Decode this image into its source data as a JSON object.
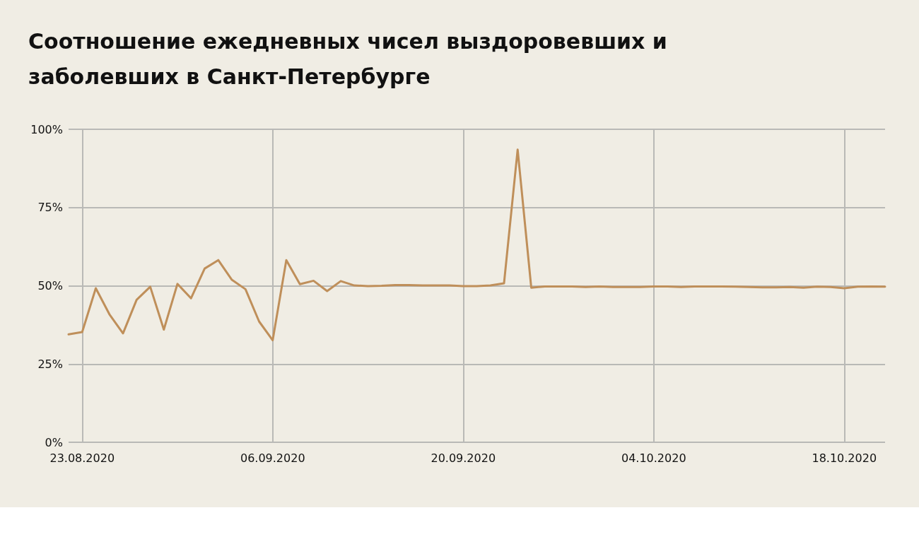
{
  "chart_data": {
    "type": "line",
    "title": "Соотношение ежедневных чисел выздоровевших и заболевших в Санкт-Петербурге",
    "x": [
      "2020-08-22",
      "2020-08-23",
      "2020-08-24",
      "2020-08-25",
      "2020-08-26",
      "2020-08-27",
      "2020-08-28",
      "2020-08-29",
      "2020-08-30",
      "2020-08-31",
      "2020-09-01",
      "2020-09-02",
      "2020-09-03",
      "2020-09-04",
      "2020-09-05",
      "2020-09-06",
      "2020-09-07",
      "2020-09-08",
      "2020-09-09",
      "2020-09-10",
      "2020-09-11",
      "2020-09-12",
      "2020-09-13",
      "2020-09-14",
      "2020-09-15",
      "2020-09-16",
      "2020-09-17",
      "2020-09-18",
      "2020-09-19",
      "2020-09-20",
      "2020-09-21",
      "2020-09-22",
      "2020-09-23",
      "2020-09-24",
      "2020-09-25",
      "2020-09-26",
      "2020-09-27",
      "2020-09-28",
      "2020-09-29",
      "2020-09-30",
      "2020-10-01",
      "2020-10-02",
      "2020-10-03",
      "2020-10-04",
      "2020-10-05",
      "2020-10-06",
      "2020-10-07",
      "2020-10-08",
      "2020-10-09",
      "2020-10-10",
      "2020-10-11",
      "2020-10-12",
      "2020-10-13",
      "2020-10-14",
      "2020-10-15",
      "2020-10-16",
      "2020-10-17",
      "2020-10-18",
      "2020-10-19",
      "2020-10-20",
      "2020-10-21"
    ],
    "series": [
      {
        "color": "#bf8f5a",
        "values": [
          34.5,
          35.2,
          49.2,
          40.9,
          34.8,
          45.5,
          49.7,
          36.0,
          50.6,
          46.0,
          55.5,
          58.2,
          51.9,
          48.9,
          38.6,
          32.6,
          58.2,
          50.5,
          51.6,
          48.3,
          51.5,
          50.1,
          49.9,
          50.0,
          50.2,
          50.2,
          50.1,
          50.1,
          50.1,
          49.9,
          49.9,
          50.1,
          50.8,
          93.5,
          49.4,
          49.8,
          49.8,
          49.8,
          49.6,
          49.8,
          49.6,
          49.6,
          49.6,
          49.8,
          49.8,
          49.6,
          49.8,
          49.8,
          49.8,
          49.7,
          49.6,
          49.5,
          49.5,
          49.6,
          49.4,
          49.7,
          49.6,
          49.2,
          49.7,
          49.8,
          49.7
        ]
      }
    ],
    "xlim": [
      "2020-08-22",
      "2020-10-21"
    ],
    "xticks": [
      {
        "value": "2020-08-23",
        "label": "23.08.2020"
      },
      {
        "value": "2020-09-06",
        "label": "06.09.2020"
      },
      {
        "value": "2020-09-20",
        "label": "20.09.2020"
      },
      {
        "value": "2020-10-04",
        "label": "04.10.2020"
      },
      {
        "value": "2020-10-18",
        "label": "18.10.2020"
      }
    ],
    "ylim": [
      0,
      100
    ],
    "yticks": [
      {
        "value": 0,
        "label": "0%"
      },
      {
        "value": 25,
        "label": "25%"
      },
      {
        "value": 50,
        "label": "50%"
      },
      {
        "value": 75,
        "label": "75%"
      },
      {
        "value": 100,
        "label": "100%"
      }
    ],
    "grid": true,
    "marker": "none",
    "line_style": "solid"
  }
}
